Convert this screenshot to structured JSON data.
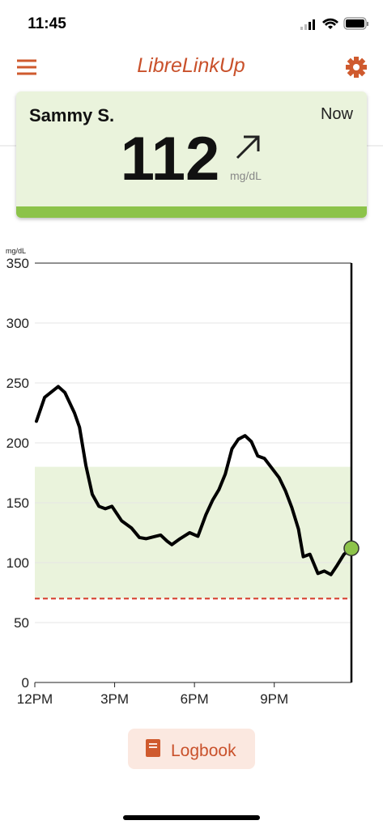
{
  "status_bar": {
    "time": "11:45"
  },
  "header": {
    "title": "LibreLinkUp"
  },
  "card": {
    "name": "Sammy S.",
    "time_label": "Now",
    "value": 112,
    "unit": "mg/dL"
  },
  "chart_data": {
    "type": "line",
    "y_label": "mg/dL",
    "x": [
      0.06,
      0.37,
      0.88,
      1.13,
      1.49,
      1.68,
      1.92,
      2.16,
      2.41,
      2.65,
      2.9,
      3.26,
      3.63,
      3.93,
      4.18,
      4.54,
      4.73,
      4.97,
      5.15,
      5.46,
      5.82,
      6.13,
      6.43,
      6.68,
      6.92,
      7.16,
      7.41,
      7.65,
      7.9,
      8.14,
      8.38,
      8.63,
      8.87,
      9.18,
      9.42,
      9.66,
      9.91,
      10.09,
      10.34,
      10.64,
      10.88,
      11.13,
      11.37,
      11.62,
      11.9
    ],
    "values": [
      218,
      238,
      247,
      242,
      225,
      213,
      181,
      157,
      147,
      145,
      147,
      135,
      129,
      121,
      120,
      122,
      123,
      118,
      115,
      120,
      125,
      122,
      140,
      152,
      161,
      174,
      195,
      203,
      206,
      201,
      189,
      187,
      180,
      171,
      160,
      146,
      128,
      105,
      107,
      91,
      93,
      90,
      98,
      107,
      112
    ],
    "color": "#000000",
    "marker_color": "#8dc34a",
    "target_range": [
      70,
      180
    ],
    "target_color": "#eaf3dc",
    "low_line": 70,
    "low_color": "#d63a2a",
    "xlim": [
      0,
      11.9
    ],
    "xticks": [
      {
        "value": 0,
        "label": "12PM"
      },
      {
        "value": 3,
        "label": "3PM"
      },
      {
        "value": 6,
        "label": "6PM"
      },
      {
        "value": 9,
        "label": "9PM"
      }
    ],
    "ylim": [
      0,
      350
    ],
    "yticks": [
      0,
      50,
      100,
      150,
      200,
      250,
      300,
      350
    ],
    "grid": true
  },
  "button": {
    "label": "Logbook"
  }
}
